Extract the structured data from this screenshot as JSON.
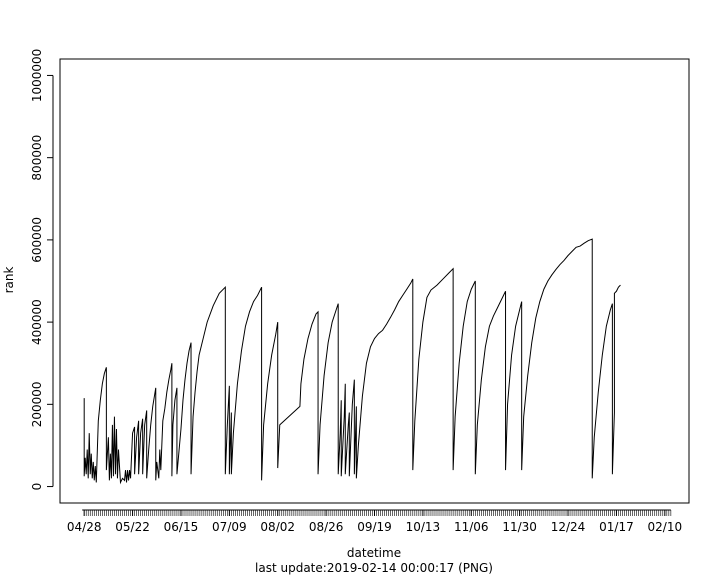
{
  "chart_data": {
    "type": "line",
    "xlabel": "datetime",
    "ylabel": "rank",
    "footer": "last update:2019-02-14 00:00:17 (PNG)",
    "x_tick_labels": [
      "04/28",
      "05/22",
      "06/15",
      "07/09",
      "08/02",
      "08/26",
      "09/19",
      "10/13",
      "11/06",
      "11/30",
      "12/24",
      "01/17",
      "02/10"
    ],
    "x_tick_days": [
      0,
      24,
      48,
      72,
      96,
      120,
      144,
      168,
      192,
      216,
      240,
      264,
      288
    ],
    "xlim_days": [
      -12,
      300
    ],
    "y_ticks": [
      0,
      200000,
      400000,
      600000,
      800000,
      1000000
    ],
    "ylim": [
      -40000,
      1040000
    ],
    "series": [
      {
        "values": [
          [
            0,
            215000
          ],
          [
            0,
            25000
          ],
          [
            0.5,
            70000
          ],
          [
            1,
            30000
          ],
          [
            1.5,
            90000
          ],
          [
            2,
            20000
          ],
          [
            2.5,
            130000
          ],
          [
            3,
            30000
          ],
          [
            3.5,
            80000
          ],
          [
            4,
            20000
          ],
          [
            4.5,
            60000
          ],
          [
            5,
            15000
          ],
          [
            5.5,
            50000
          ],
          [
            6,
            10000
          ],
          [
            7,
            160000
          ],
          [
            8,
            210000
          ],
          [
            9,
            250000
          ],
          [
            10,
            275000
          ],
          [
            11,
            290000
          ],
          [
            11,
            40000
          ],
          [
            12,
            120000
          ],
          [
            12.5,
            15000
          ],
          [
            13,
            80000
          ],
          [
            13.5,
            20000
          ],
          [
            14,
            150000
          ],
          [
            14.5,
            25000
          ],
          [
            15,
            170000
          ],
          [
            15.5,
            30000
          ],
          [
            16,
            140000
          ],
          [
            16.5,
            20000
          ],
          [
            17,
            90000
          ],
          [
            18,
            10000
          ],
          [
            19,
            20000
          ],
          [
            20,
            15000
          ],
          [
            20.5,
            40000
          ],
          [
            21,
            10000
          ],
          [
            21.5,
            40000
          ],
          [
            22,
            15000
          ],
          [
            22.5,
            40000
          ],
          [
            23,
            20000
          ],
          [
            24,
            130000
          ],
          [
            25,
            145000
          ],
          [
            25,
            30000
          ],
          [
            26,
            120000
          ],
          [
            27,
            160000
          ],
          [
            27,
            30000
          ],
          [
            28,
            130000
          ],
          [
            29,
            165000
          ],
          [
            29,
            30000
          ],
          [
            30,
            150000
          ],
          [
            31,
            185000
          ],
          [
            31,
            20000
          ],
          [
            32,
            90000
          ],
          [
            33,
            150000
          ],
          [
            34,
            195000
          ],
          [
            35,
            225000
          ],
          [
            35.5,
            240000
          ],
          [
            35.5,
            15000
          ],
          [
            36,
            60000
          ],
          [
            37,
            20000
          ],
          [
            37.5,
            90000
          ],
          [
            38,
            40000
          ],
          [
            39,
            160000
          ],
          [
            40,
            190000
          ],
          [
            41,
            230000
          ],
          [
            42,
            260000
          ],
          [
            43,
            285000
          ],
          [
            43.5,
            300000
          ],
          [
            43.5,
            25000
          ],
          [
            44,
            150000
          ],
          [
            45,
            210000
          ],
          [
            46,
            240000
          ],
          [
            46,
            30000
          ],
          [
            48,
            140000
          ],
          [
            49,
            210000
          ],
          [
            50,
            260000
          ],
          [
            51,
            300000
          ],
          [
            52,
            330000
          ],
          [
            53,
            350000
          ],
          [
            53,
            30000
          ],
          [
            54,
            170000
          ],
          [
            55,
            230000
          ],
          [
            56,
            280000
          ],
          [
            57,
            320000
          ],
          [
            59,
            360000
          ],
          [
            61,
            400000
          ],
          [
            64,
            440000
          ],
          [
            67,
            470000
          ],
          [
            70,
            485000
          ],
          [
            70,
            30000
          ],
          [
            71,
            150000
          ],
          [
            72,
            245000
          ],
          [
            72,
            30000
          ],
          [
            73,
            180000
          ],
          [
            73,
            30000
          ],
          [
            74,
            130000
          ],
          [
            76,
            250000
          ],
          [
            78,
            330000
          ],
          [
            80,
            390000
          ],
          [
            82,
            425000
          ],
          [
            84,
            450000
          ],
          [
            86,
            465000
          ],
          [
            88,
            485000
          ],
          [
            88,
            15000
          ],
          [
            89,
            150000
          ],
          [
            91,
            250000
          ],
          [
            93,
            320000
          ],
          [
            95,
            370000
          ],
          [
            96,
            400000
          ],
          [
            96,
            45000
          ],
          [
            97,
            150000
          ],
          [
            107,
            195000
          ],
          [
            107.5,
            250000
          ],
          [
            109,
            310000
          ],
          [
            111,
            360000
          ],
          [
            113,
            395000
          ],
          [
            115,
            420000
          ],
          [
            116,
            425000
          ],
          [
            116,
            30000
          ],
          [
            117,
            150000
          ],
          [
            119,
            270000
          ],
          [
            121,
            350000
          ],
          [
            123,
            400000
          ],
          [
            125,
            430000
          ],
          [
            126,
            445000
          ],
          [
            126,
            30000
          ],
          [
            127,
            130000
          ],
          [
            127.5,
            210000
          ],
          [
            127.5,
            25000
          ],
          [
            129,
            170000
          ],
          [
            129.5,
            250000
          ],
          [
            129.5,
            30000
          ],
          [
            131,
            150000
          ],
          [
            131.5,
            180000
          ],
          [
            131.5,
            25000
          ],
          [
            133,
            200000
          ],
          [
            134,
            260000
          ],
          [
            134,
            30000
          ],
          [
            135,
            195000
          ],
          [
            135,
            20000
          ],
          [
            136,
            100000
          ],
          [
            138,
            220000
          ],
          [
            140,
            300000
          ],
          [
            142,
            340000
          ],
          [
            144,
            360000
          ],
          [
            146,
            372000
          ],
          [
            148,
            380000
          ],
          [
            150,
            395000
          ],
          [
            152,
            412000
          ],
          [
            154,
            430000
          ],
          [
            156,
            450000
          ],
          [
            158,
            465000
          ],
          [
            160,
            480000
          ],
          [
            162,
            495000
          ],
          [
            163,
            505000
          ],
          [
            163,
            40000
          ],
          [
            164,
            160000
          ],
          [
            166,
            310000
          ],
          [
            168,
            400000
          ],
          [
            170,
            460000
          ],
          [
            172,
            478000
          ],
          [
            175,
            490000
          ],
          [
            178,
            505000
          ],
          [
            181,
            520000
          ],
          [
            183,
            530000
          ],
          [
            183,
            40000
          ],
          [
            184,
            170000
          ],
          [
            186,
            300000
          ],
          [
            188,
            390000
          ],
          [
            190,
            450000
          ],
          [
            192,
            480000
          ],
          [
            194,
            500000
          ],
          [
            194,
            30000
          ],
          [
            195,
            150000
          ],
          [
            197,
            260000
          ],
          [
            199,
            340000
          ],
          [
            201,
            390000
          ],
          [
            203,
            415000
          ],
          [
            205,
            435000
          ],
          [
            207,
            455000
          ],
          [
            209,
            475000
          ],
          [
            209,
            40000
          ],
          [
            210,
            200000
          ],
          [
            212,
            320000
          ],
          [
            214,
            390000
          ],
          [
            216,
            430000
          ],
          [
            217,
            450000
          ],
          [
            217,
            40000
          ],
          [
            218,
            170000
          ],
          [
            220,
            270000
          ],
          [
            222,
            350000
          ],
          [
            224,
            410000
          ],
          [
            226,
            450000
          ],
          [
            228,
            480000
          ],
          [
            230,
            500000
          ],
          [
            232,
            515000
          ],
          [
            234,
            528000
          ],
          [
            236,
            540000
          ],
          [
            238,
            550000
          ],
          [
            240,
            562000
          ],
          [
            242,
            572000
          ],
          [
            244,
            582000
          ],
          [
            246,
            585000
          ],
          [
            248,
            592000
          ],
          [
            250,
            598000
          ],
          [
            252,
            602000
          ],
          [
            252,
            20000
          ],
          [
            253,
            120000
          ],
          [
            255,
            230000
          ],
          [
            257,
            320000
          ],
          [
            259,
            390000
          ],
          [
            261,
            430000
          ],
          [
            262,
            445000
          ],
          [
            262,
            30000
          ],
          [
            263,
            180000
          ],
          [
            263,
            470000
          ],
          [
            264,
            475000
          ],
          [
            265,
            485000
          ],
          [
            266,
            490000
          ]
        ]
      }
    ]
  }
}
